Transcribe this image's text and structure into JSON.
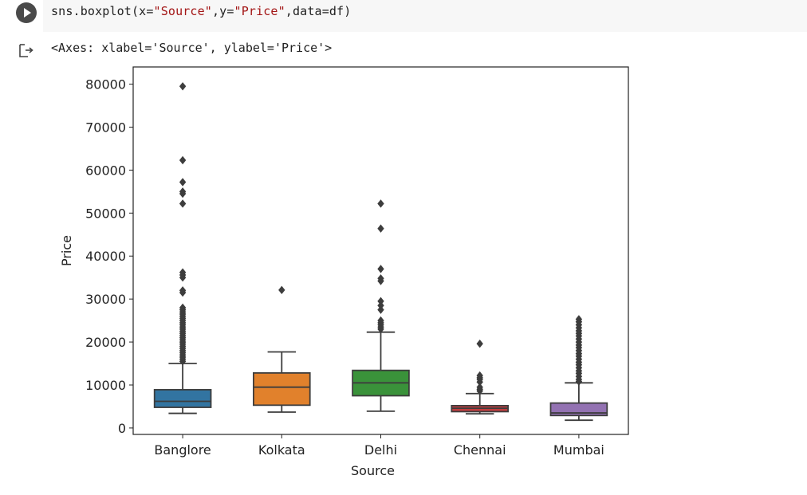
{
  "code_cell": {
    "code": "sns.boxplot(x=\"Source\",y=\"Price\",data=df)",
    "code_prefix": "sns.boxplot(x=",
    "arg_x": "\"Source\"",
    "sep1": ",y=",
    "arg_y": "\"Price\"",
    "suffix": ",data=df)"
  },
  "output": {
    "text": "<Axes: xlabel='Source', ylabel='Price'>"
  },
  "colors": {
    "Banglore": "#3274a1",
    "Kolkata": "#e1812c",
    "Delhi": "#3a923a",
    "Chennai": "#c03d3e",
    "Mumbai": "#9372b2",
    "line": "#3d3d3d",
    "string_token": "#a31515"
  },
  "chart_data": {
    "type": "box",
    "xlabel": "Source",
    "ylabel": "Price",
    "ylim": [
      -1500,
      84000
    ],
    "yticks": [
      0,
      10000,
      20000,
      30000,
      40000,
      50000,
      60000,
      70000,
      80000
    ],
    "ytick_labels": [
      "0",
      "10000",
      "20000",
      "30000",
      "40000",
      "50000",
      "60000",
      "70000",
      "80000"
    ],
    "categories": [
      "Banglore",
      "Kolkata",
      "Delhi",
      "Chennai",
      "Mumbai"
    ],
    "series": [
      {
        "category": "Banglore",
        "whisker_low": 3400,
        "q1": 4800,
        "median": 6200,
        "q3": 8900,
        "whisker_high": 15000,
        "outliers": [
          79500,
          62300,
          57200,
          55000,
          54500,
          52200,
          36200,
          35600,
          35000,
          32000,
          31500,
          28000,
          27500,
          27000,
          26500,
          26000,
          25500,
          25000,
          24500,
          24000,
          23500,
          23000,
          22500,
          22000,
          21500,
          21000,
          20500,
          20000,
          19500,
          19000,
          18500,
          18000,
          17500,
          17000,
          16500,
          16000,
          15500
        ]
      },
      {
        "category": "Kolkata",
        "whisker_low": 3700,
        "q1": 5300,
        "median": 9500,
        "q3": 12800,
        "whisker_high": 17700,
        "outliers": [
          32100
        ]
      },
      {
        "category": "Delhi",
        "whisker_low": 3900,
        "q1": 7500,
        "median": 10500,
        "q3": 13400,
        "whisker_high": 22300,
        "outliers": [
          52200,
          46400,
          37000,
          34800,
          34200,
          29500,
          28500,
          27500,
          25000,
          24500,
          24000,
          23500,
          23000
        ]
      },
      {
        "category": "Chennai",
        "whisker_low": 3300,
        "q1": 3800,
        "median": 4600,
        "q3": 5200,
        "whisker_high": 8000,
        "outliers": [
          19600,
          12200,
          11700,
          11300,
          10700,
          9500,
          9000,
          8600
        ]
      },
      {
        "category": "Mumbai",
        "whisker_low": 1800,
        "q1": 2900,
        "median": 3500,
        "q3": 5800,
        "whisker_high": 10500,
        "outliers": [
          25300,
          24700,
          24000,
          23300,
          22600,
          22000,
          21400,
          20700,
          20000,
          19300,
          18700,
          18000,
          17300,
          16700,
          16000,
          15300,
          14700,
          14000,
          13300,
          12700,
          12000,
          11300,
          10800
        ]
      }
    ]
  }
}
